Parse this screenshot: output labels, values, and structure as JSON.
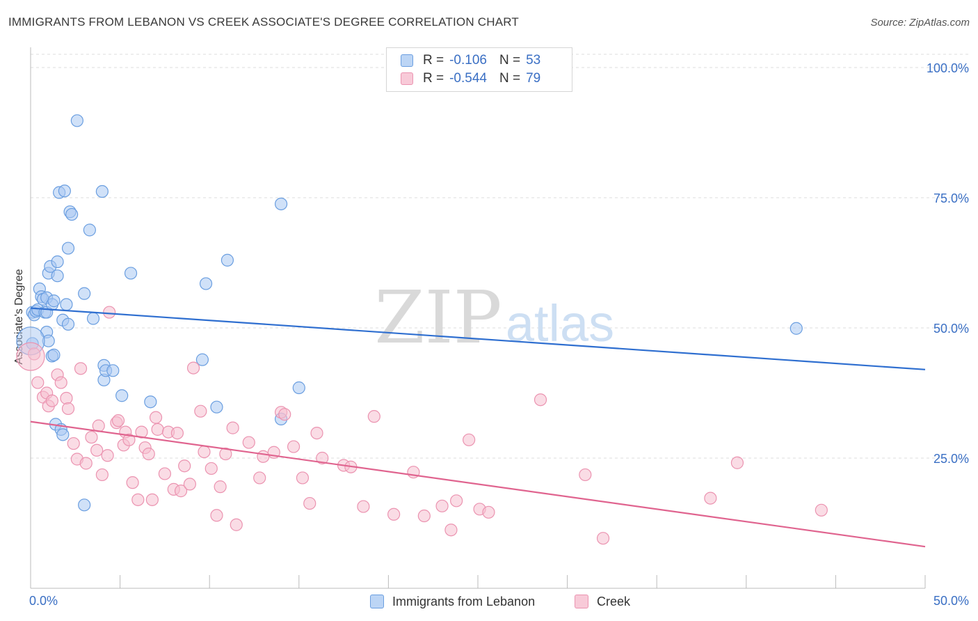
{
  "title": "IMMIGRANTS FROM LEBANON VS CREEK ASSOCIATE'S DEGREE CORRELATION CHART",
  "source": "Source: ZipAtlas.com",
  "watermark": {
    "zip": "ZIP",
    "atlas": "atlas"
  },
  "legend_top": [
    {
      "r_label": "R =",
      "r_value": "-0.106",
      "n_label": "N =",
      "n_value": "53"
    },
    {
      "r_label": "R =",
      "r_value": "-0.544",
      "n_label": "N =",
      "n_value": "79"
    }
  ],
  "colors": {
    "blue_fill": "#a9c8f2",
    "blue_stroke": "#6a9ee0",
    "blue_line": "#2f6fd0",
    "pink_fill": "#f6bfd0",
    "pink_stroke": "#eb93b0",
    "pink_line": "#e0648f",
    "tick_text": "#3a6fc4"
  },
  "chart_data": {
    "type": "scatter",
    "title": "IMMIGRANTS FROM LEBANON VS CREEK ASSOCIATE'S DEGREE CORRELATION CHART",
    "xlabel": "",
    "ylabel": "Associate's Degree",
    "xlim": [
      0,
      50
    ],
    "ylim": [
      0,
      100
    ],
    "x_tick_labels": [
      "0.0%",
      "50.0%"
    ],
    "y_ticks": [
      25,
      50,
      75,
      100
    ],
    "y_tick_labels": [
      "25.0%",
      "50.0%",
      "75.0%",
      "100.0%"
    ],
    "grid": true,
    "legend_position": "bottom",
    "series": [
      {
        "name": "Immigrants from Lebanon",
        "trend": [
          [
            0,
            53.8
          ],
          [
            50,
            42.0
          ]
        ],
        "points": [
          [
            0.1,
            47.0
          ],
          [
            0.1,
            53.0
          ],
          [
            0.2,
            52.5
          ],
          [
            0.3,
            53.2
          ],
          [
            0.4,
            53.5
          ],
          [
            0.5,
            57.5
          ],
          [
            0.6,
            56.0
          ],
          [
            0.7,
            55.5
          ],
          [
            0.8,
            53.0
          ],
          [
            0.9,
            55.8
          ],
          [
            0.9,
            53.0
          ],
          [
            0.9,
            49.2
          ],
          [
            1.0,
            60.5
          ],
          [
            1.0,
            47.5
          ],
          [
            1.1,
            61.8
          ],
          [
            1.2,
            54.5
          ],
          [
            1.2,
            44.6
          ],
          [
            1.3,
            44.8
          ],
          [
            1.3,
            55.2
          ],
          [
            1.5,
            60.0
          ],
          [
            1.4,
            31.5
          ],
          [
            1.5,
            62.7
          ],
          [
            1.7,
            30.5
          ],
          [
            1.6,
            76.0
          ],
          [
            1.8,
            29.5
          ],
          [
            1.8,
            51.5
          ],
          [
            1.9,
            76.3
          ],
          [
            2.0,
            54.5
          ],
          [
            2.1,
            50.7
          ],
          [
            2.1,
            65.3
          ],
          [
            2.2,
            72.3
          ],
          [
            2.3,
            71.8
          ],
          [
            2.6,
            89.8
          ],
          [
            3.0,
            56.6
          ],
          [
            3.0,
            16.0
          ],
          [
            3.3,
            68.8
          ],
          [
            3.5,
            51.8
          ],
          [
            4.0,
            76.2
          ],
          [
            4.1,
            42.8
          ],
          [
            4.1,
            40.0
          ],
          [
            4.2,
            41.8
          ],
          [
            4.6,
            41.8
          ],
          [
            5.1,
            37.0
          ],
          [
            5.6,
            60.5
          ],
          [
            6.7,
            35.8
          ],
          [
            9.6,
            43.9
          ],
          [
            9.8,
            58.5
          ],
          [
            10.4,
            34.8
          ],
          [
            11.0,
            63.0
          ],
          [
            14.0,
            32.5
          ],
          [
            14.0,
            73.8
          ],
          [
            15.0,
            38.5
          ],
          [
            42.8,
            49.9
          ]
        ]
      },
      {
        "name": "Creek",
        "trend": [
          [
            0,
            32.0
          ],
          [
            50,
            8.0
          ]
        ],
        "points": [
          [
            0.2,
            45.0
          ],
          [
            0.4,
            39.5
          ],
          [
            0.7,
            36.7
          ],
          [
            0.9,
            37.5
          ],
          [
            1.0,
            35.0
          ],
          [
            1.2,
            36.0
          ],
          [
            1.5,
            41.0
          ],
          [
            1.7,
            39.5
          ],
          [
            2.0,
            36.5
          ],
          [
            2.1,
            34.5
          ],
          [
            2.4,
            27.8
          ],
          [
            2.6,
            24.8
          ],
          [
            2.8,
            42.2
          ],
          [
            3.1,
            24.0
          ],
          [
            3.4,
            29.0
          ],
          [
            3.7,
            26.5
          ],
          [
            3.8,
            31.2
          ],
          [
            4.0,
            21.8
          ],
          [
            4.4,
            53.0
          ],
          [
            4.3,
            25.5
          ],
          [
            4.8,
            31.8
          ],
          [
            4.9,
            32.2
          ],
          [
            5.2,
            27.5
          ],
          [
            5.3,
            30.0
          ],
          [
            5.5,
            28.5
          ],
          [
            5.7,
            20.3
          ],
          [
            6.0,
            17.0
          ],
          [
            6.2,
            30.0
          ],
          [
            6.4,
            27.0
          ],
          [
            6.6,
            25.8
          ],
          [
            6.8,
            17.0
          ],
          [
            7.0,
            32.8
          ],
          [
            7.1,
            30.5
          ],
          [
            7.5,
            22.0
          ],
          [
            7.7,
            30.0
          ],
          [
            8.0,
            19.0
          ],
          [
            8.2,
            29.8
          ],
          [
            8.4,
            18.7
          ],
          [
            8.6,
            23.5
          ],
          [
            8.9,
            20.0
          ],
          [
            9.1,
            42.3
          ],
          [
            9.5,
            34.0
          ],
          [
            9.7,
            26.2
          ],
          [
            10.1,
            23.0
          ],
          [
            10.4,
            14.0
          ],
          [
            10.6,
            19.5
          ],
          [
            10.9,
            25.8
          ],
          [
            11.3,
            30.8
          ],
          [
            11.5,
            12.2
          ],
          [
            12.2,
            28.0
          ],
          [
            12.8,
            21.2
          ],
          [
            13.0,
            25.3
          ],
          [
            13.6,
            26.1
          ],
          [
            14.0,
            33.8
          ],
          [
            14.2,
            33.4
          ],
          [
            14.7,
            27.2
          ],
          [
            15.2,
            21.2
          ],
          [
            15.6,
            16.3
          ],
          [
            16.0,
            29.8
          ],
          [
            16.3,
            25.0
          ],
          [
            17.5,
            23.6
          ],
          [
            17.9,
            23.3
          ],
          [
            18.6,
            15.7
          ],
          [
            19.2,
            33.0
          ],
          [
            20.3,
            14.2
          ],
          [
            21.4,
            22.3
          ],
          [
            22.0,
            13.9
          ],
          [
            23.0,
            15.8
          ],
          [
            23.5,
            11.2
          ],
          [
            23.8,
            16.8
          ],
          [
            24.5,
            28.5
          ],
          [
            25.1,
            15.2
          ],
          [
            25.6,
            14.6
          ],
          [
            28.5,
            36.2
          ],
          [
            31.0,
            21.8
          ],
          [
            32.0,
            9.6
          ],
          [
            38.0,
            17.3
          ],
          [
            39.5,
            24.1
          ],
          [
            44.2,
            15.0
          ]
        ]
      }
    ]
  }
}
